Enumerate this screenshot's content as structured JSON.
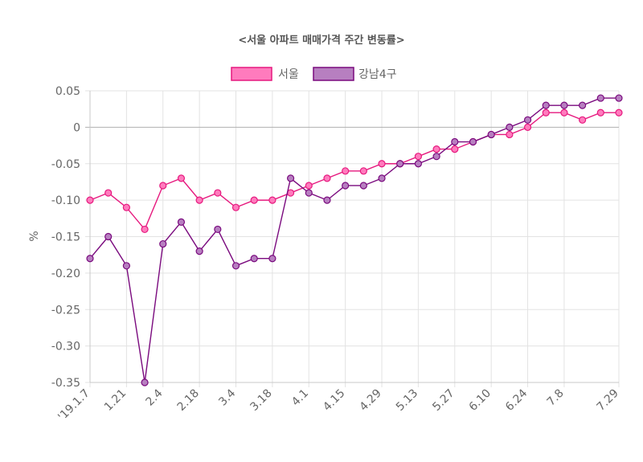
{
  "chart_data": {
    "type": "line",
    "title": "<서울 아파트 매매가격 주간 변동률>",
    "xlabel": "",
    "ylabel": "%",
    "ylim": [
      -0.35,
      0.05
    ],
    "yticks": [
      0.05,
      0,
      -0.05,
      -0.1,
      -0.15,
      -0.2,
      -0.25,
      -0.3,
      -0.35
    ],
    "ytick_labels": [
      "0.05",
      "0",
      "-0.05",
      "-0.10",
      "-0.15",
      "-0.20",
      "-0.25",
      "-0.30",
      "-0.35"
    ],
    "xtick_labels": [
      {
        "index": 0,
        "label": "'19.1.7"
      },
      {
        "index": 2,
        "label": "1.21"
      },
      {
        "index": 4,
        "label": "2.4"
      },
      {
        "index": 6,
        "label": "2.18"
      },
      {
        "index": 8,
        "label": "3.4"
      },
      {
        "index": 10,
        "label": "3.18"
      },
      {
        "index": 12,
        "label": "4.1"
      },
      {
        "index": 14,
        "label": "4.15"
      },
      {
        "index": 16,
        "label": "4.29"
      },
      {
        "index": 18,
        "label": "5.13"
      },
      {
        "index": 20,
        "label": "5.27"
      },
      {
        "index": 22,
        "label": "6.10"
      },
      {
        "index": 24,
        "label": "6.24"
      },
      {
        "index": 26,
        "label": "7.8"
      },
      {
        "index": 29,
        "label": "7.29"
      }
    ],
    "legend_position": "top",
    "grid": true,
    "series": [
      {
        "name": "서울",
        "color": "#e6197e",
        "fill": "#ff7bbd",
        "values": [
          -0.1,
          -0.09,
          -0.11,
          -0.14,
          -0.08,
          -0.07,
          -0.1,
          -0.09,
          -0.11,
          -0.1,
          -0.1,
          -0.09,
          -0.08,
          -0.07,
          -0.06,
          -0.06,
          -0.05,
          -0.05,
          -0.04,
          -0.03,
          -0.03,
          -0.02,
          -0.01,
          -0.01,
          0.0,
          0.02,
          0.02,
          0.01,
          0.02,
          0.02
        ]
      },
      {
        "name": "강남4구",
        "color": "#7a0a7e",
        "fill": "#b77fc0",
        "values": [
          -0.18,
          -0.15,
          -0.19,
          -0.35,
          -0.16,
          -0.13,
          -0.17,
          -0.14,
          -0.19,
          -0.18,
          -0.18,
          -0.07,
          -0.09,
          -0.1,
          -0.08,
          -0.08,
          -0.07,
          -0.05,
          -0.05,
          -0.04,
          -0.02,
          -0.02,
          -0.01,
          0.0,
          0.01,
          0.03,
          0.03,
          0.03,
          0.04,
          0.04
        ]
      }
    ]
  }
}
